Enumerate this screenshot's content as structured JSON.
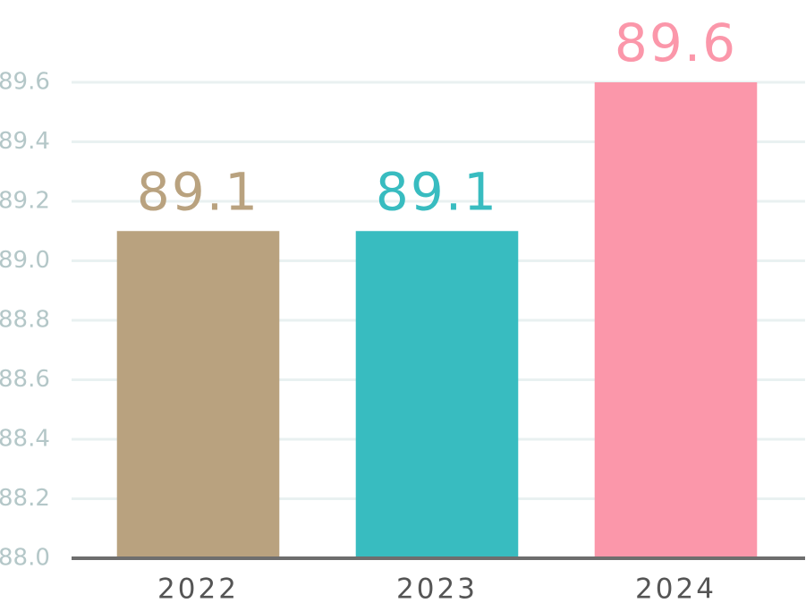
{
  "chart_data": {
    "type": "bar",
    "categories": [
      "2022",
      "2023",
      "2024"
    ],
    "values": [
      89.1,
      89.1,
      89.6
    ],
    "colors": [
      "#b9a27f",
      "#38bcc0",
      "#fb97aa"
    ],
    "ylim": [
      88.0,
      89.6
    ],
    "yticks": [
      {
        "value": 88.0,
        "label": "88.0"
      },
      88.2,
      88.4,
      88.6,
      88.8,
      {
        "value": 89.0,
        "label": "89.0"
      },
      89.2,
      89.4,
      89.6
    ],
    "grid": true
  }
}
